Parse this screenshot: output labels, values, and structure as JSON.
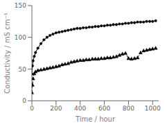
{
  "chart_data": {
    "type": "line",
    "x_label": "Time / hour",
    "y_label": "Conductivity / mS cm⁻¹",
    "x": [
      0,
      5,
      10,
      20,
      30,
      50,
      75,
      100,
      125,
      150,
      175,
      200,
      225,
      250,
      275,
      300,
      325,
      350,
      375,
      400,
      425,
      450,
      475,
      500,
      525,
      550,
      575,
      600,
      625,
      650,
      675,
      700,
      725,
      750,
      775,
      800,
      825,
      850,
      875,
      900,
      925,
      950,
      975,
      1000,
      1025
    ],
    "series": [
      {
        "color": "#000000",
        "marker": "circle",
        "line_style": "solid",
        "values": [
          42,
          55,
          63,
          70,
          76,
          83,
          90,
          96,
          100,
          103,
          105,
          107,
          108,
          109,
          110,
          111,
          112,
          113,
          114,
          114,
          115,
          115,
          116,
          116,
          117,
          117,
          118,
          118,
          119,
          119,
          120,
          120,
          121,
          121,
          122,
          122,
          123,
          123,
          124,
          124,
          124,
          125,
          125,
          125,
          126
        ]
      },
      {
        "color": "#000000",
        "marker": "triangle",
        "line_style": "dashed",
        "values": [
          13,
          25,
          35,
          43,
          46,
          48,
          49,
          50,
          51,
          52,
          53,
          54,
          55,
          57,
          58,
          59,
          61,
          62,
          63,
          64,
          64,
          65,
          65,
          66,
          66,
          66,
          67,
          67,
          68,
          68,
          69,
          70,
          72,
          74,
          75,
          67,
          66,
          67,
          68,
          76,
          79,
          80,
          81,
          82,
          83
        ]
      }
    ],
    "xlim": [
      0,
      1050
    ],
    "ylim": [
      0,
      150
    ],
    "xticks": [
      0,
      200,
      400,
      600,
      800,
      1000
    ],
    "yticks": [
      0,
      50,
      100,
      150
    ],
    "grid": false
  }
}
